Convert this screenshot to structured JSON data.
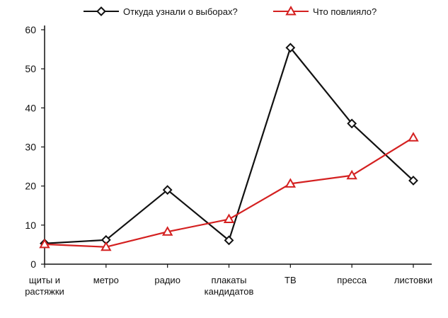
{
  "chart_data": {
    "type": "line",
    "categories": [
      "щиты и\nрастяжки",
      "метро",
      "радио",
      "плакаты\nкандидатов",
      "ТВ",
      "пресса",
      "листовки"
    ],
    "series": [
      {
        "name": "Откуда узнали о выборах?",
        "values": [
          5.3,
          6.2,
          19.0,
          6.1,
          55.4,
          36.0,
          21.4
        ],
        "color": "#111111",
        "marker": "diamond"
      },
      {
        "name": "Что повлияло?",
        "values": [
          5.1,
          4.4,
          8.3,
          11.5,
          20.6,
          22.7,
          32.4
        ],
        "color": "#d42020",
        "marker": "triangle"
      }
    ],
    "y_ticks": [
      "0",
      "10",
      "20",
      "30",
      "40",
      "50",
      "60"
    ],
    "ylim": [
      0,
      60
    ],
    "grid": false,
    "legend_position": "top"
  }
}
